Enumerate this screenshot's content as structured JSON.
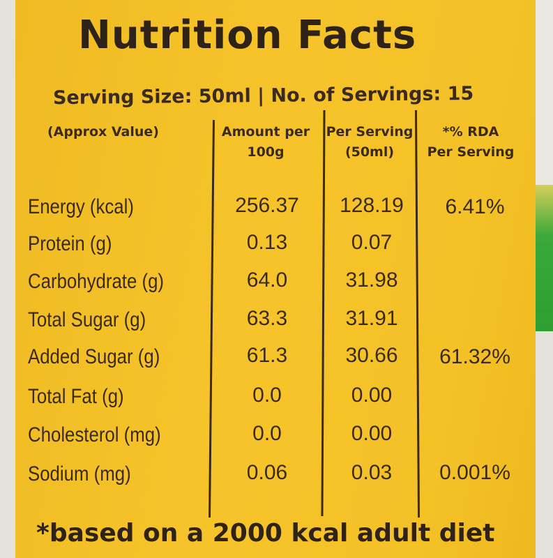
{
  "title": "Nutrition Facts",
  "serving": "Serving Size: 50ml | No. of Servings: 15",
  "headers": {
    "approx": "(Approx Value)",
    "amount_line1": "Amount per",
    "amount_line2": "100g",
    "perserv_line1": "Per Serving",
    "perserv_line2": "(50ml)",
    "rda_line1": "*% RDA",
    "rda_line2": "Per Serving"
  },
  "rows": [
    {
      "name": "Energy (kcal)",
      "per100": "256.37",
      "perserving": "128.19",
      "rda": "6.41%"
    },
    {
      "name": "Protein (g)",
      "per100": "0.13",
      "perserving": "0.07",
      "rda": ""
    },
    {
      "name": "Carbohydrate (g)",
      "per100": "64.0",
      "perserving": "31.98",
      "rda": ""
    },
    {
      "name": "Total Sugar (g)",
      "per100": "63.3",
      "perserving": "31.91",
      "rda": ""
    },
    {
      "name": "Added Sugar (g)",
      "per100": "61.3",
      "perserving": "30.66",
      "rda": "61.32%"
    },
    {
      "name": "Total Fat (g)",
      "per100": "0.0",
      "perserving": "0.00",
      "rda": ""
    },
    {
      "name": "Cholesterol (mg)",
      "per100": "0.0",
      "perserving": "0.00",
      "rda": ""
    },
    {
      "name": "Sodium (mg)",
      "per100": "0.06",
      "perserving": "0.03",
      "rda": "0.001%"
    }
  ],
  "footnote": "*based on a 2000 kcal adult diet",
  "colors": {
    "label": "#f6c42a",
    "ink": "#3b2a1f",
    "green_strip": "#2f9e33"
  }
}
